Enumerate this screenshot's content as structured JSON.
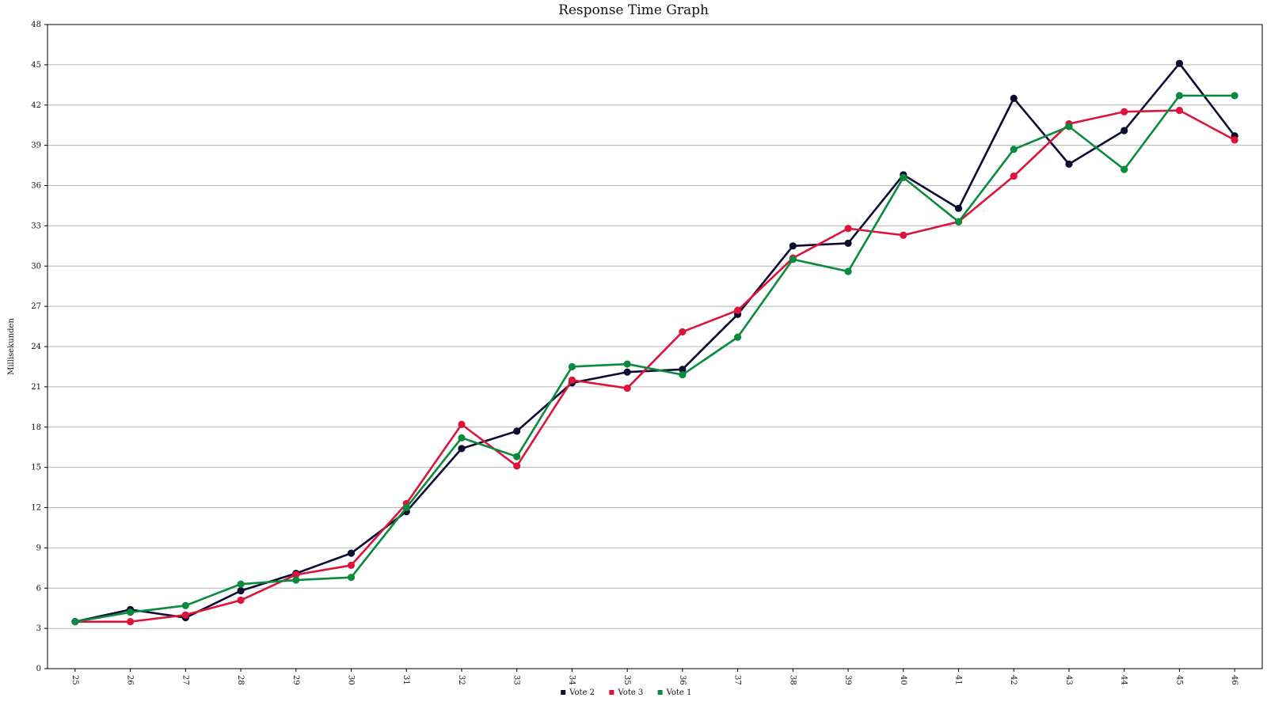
{
  "chart_data": {
    "type": "line",
    "title": "Response Time Graph",
    "ylabel": "Millisekunden",
    "xlabel": "",
    "x": [
      "25",
      "26",
      "27",
      "28",
      "29",
      "30",
      "31",
      "32",
      "33",
      "34",
      "35",
      "36",
      "37",
      "38",
      "39",
      "40",
      "41",
      "42",
      "43",
      "44",
      "45",
      "46"
    ],
    "ylim": [
      0,
      48
    ],
    "yticks": [
      0,
      3,
      6,
      9,
      12,
      15,
      18,
      21,
      24,
      27,
      30,
      33,
      36,
      39,
      42,
      45,
      48
    ],
    "grid": true,
    "legend_position": "bottom-center",
    "series": [
      {
        "name": "Vote 2",
        "color": "#0d0d33",
        "values": [
          3.5,
          4.4,
          3.8,
          5.8,
          7.1,
          8.6,
          11.7,
          16.4,
          17.7,
          21.3,
          22.1,
          22.3,
          26.4,
          31.5,
          31.7,
          36.8,
          34.3,
          42.5,
          37.6,
          40.1,
          45.1,
          39.7
        ]
      },
      {
        "name": "Vote 3",
        "color": "#dc143c",
        "values": [
          3.5,
          3.5,
          4.0,
          5.1,
          7.0,
          7.7,
          12.3,
          18.2,
          15.1,
          21.5,
          20.9,
          25.1,
          26.7,
          30.6,
          32.8,
          32.3,
          33.3,
          36.7,
          40.6,
          41.5,
          41.6,
          39.4
        ]
      },
      {
        "name": "Vote 1",
        "color": "#0a8a3c",
        "values": [
          3.5,
          4.2,
          4.7,
          6.3,
          6.6,
          6.8,
          12.0,
          17.2,
          15.8,
          22.5,
          22.7,
          21.9,
          24.7,
          30.5,
          29.6,
          36.6,
          33.3,
          38.7,
          40.4,
          37.2,
          42.7,
          42.7
        ]
      }
    ]
  }
}
